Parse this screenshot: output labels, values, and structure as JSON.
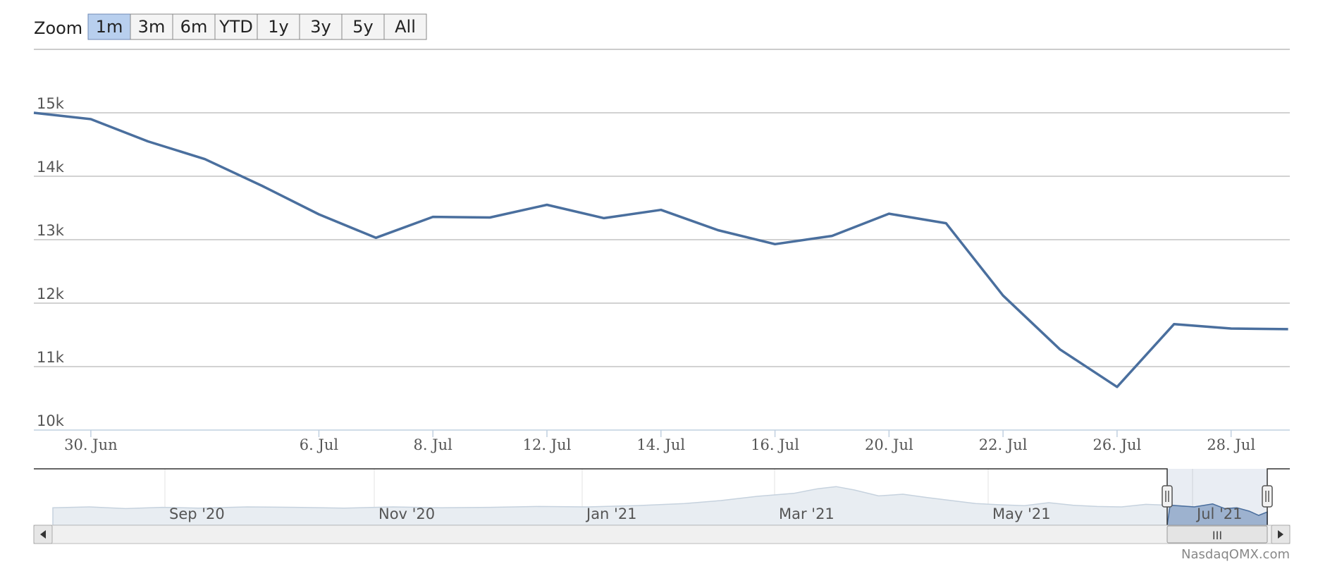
{
  "range_selector": {
    "label": "Zoom",
    "buttons": [
      "1m",
      "3m",
      "6m",
      "YTD",
      "1y",
      "3y",
      "5y",
      "All"
    ],
    "active": "1m"
  },
  "credit": "NasdaqOMX.com",
  "navigator": {
    "labels": [
      "Sep '20",
      "Nov '20",
      "Jan '21",
      "Mar '21",
      "May '21",
      "Jul '21"
    ],
    "scrollbar_grip": "III"
  },
  "colors": {
    "series": "#4a6f9e",
    "navigator_fill": "#e8edf2",
    "navigator_selected_fill": "#a9bcd6",
    "active_button": "#b8cfee"
  },
  "chart_data": {
    "type": "line",
    "title": "",
    "xlabel": "",
    "ylabel": "",
    "ylim": [
      10000,
      15000
    ],
    "yticks": [
      "10k",
      "11k",
      "12k",
      "13k",
      "14k",
      "15k"
    ],
    "xticks": [
      "30. Jun",
      "6. Jul",
      "8. Jul",
      "12. Jul",
      "14. Jul",
      "16. Jul",
      "20. Jul",
      "22. Jul",
      "26. Jul",
      "28. Jul"
    ],
    "grid": true,
    "legend": "none",
    "series": [
      {
        "x": [
          "29. Jun",
          "30. Jun",
          "1. Jul",
          "2. Jul",
          "5. Jul",
          "6. Jul",
          "7. Jul",
          "8. Jul",
          "9. Jul",
          "12. Jul",
          "13. Jul",
          "14. Jul",
          "15. Jul",
          "16. Jul",
          "19. Jul",
          "20. Jul",
          "21. Jul",
          "22. Jul",
          "23. Jul",
          "26. Jul",
          "27. Jul",
          "28. Jul",
          "29. Jul"
        ],
        "values": [
          15000,
          14900,
          14550,
          14270,
          13850,
          13400,
          13030,
          13360,
          13350,
          13550,
          13340,
          13470,
          13150,
          12930,
          13060,
          13410,
          13260,
          12120,
          11270,
          10680,
          11670,
          11600,
          11590
        ]
      }
    ]
  }
}
